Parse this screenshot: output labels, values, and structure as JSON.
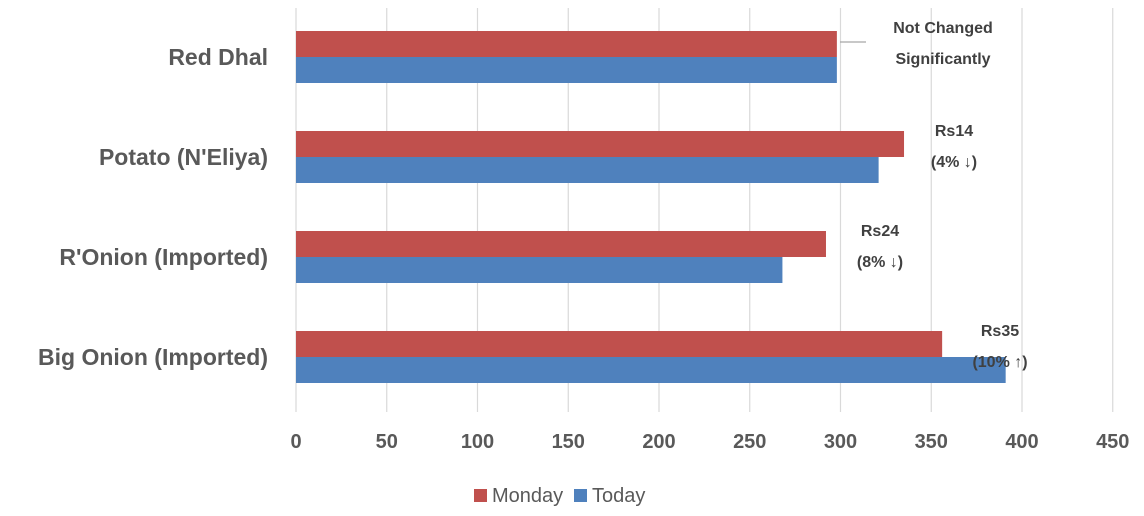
{
  "chart_data": {
    "type": "bar",
    "orientation": "horizontal",
    "title": "",
    "xlabel": "",
    "ylabel": "",
    "categories": [
      "Red Dhal",
      "Potato    (N'Eliya)",
      "R'Onion (Imported)",
      "Big Onion (Imported)"
    ],
    "series": [
      {
        "name": "Monday",
        "values": [
          298,
          335,
          292,
          356
        ],
        "color": "#C0504D"
      },
      {
        "name": "Today",
        "values": [
          298,
          321,
          268,
          391
        ],
        "color": "#4F81BD"
      }
    ],
    "xlim": [
      0,
      450
    ],
    "xticks": [
      0,
      50,
      100,
      150,
      200,
      250,
      300,
      350,
      400,
      450
    ],
    "grid": "vertical",
    "gridline_color": "#D9D9D9",
    "legend": "bottom-center",
    "annotations": [
      {
        "category": "Red Dhal",
        "lines": [
          "Not Changed",
          "Significantly"
        ]
      },
      {
        "category": "Potato    (N'Eliya)",
        "lines": [
          "Rs14",
          "(4% ↓)"
        ]
      },
      {
        "category": "R'Onion (Imported)",
        "lines": [
          "Rs24",
          "(8% ↓)"
        ]
      },
      {
        "category": "Big Onion (Imported)",
        "lines": [
          "Rs35",
          "(10% ↑)"
        ]
      }
    ]
  }
}
